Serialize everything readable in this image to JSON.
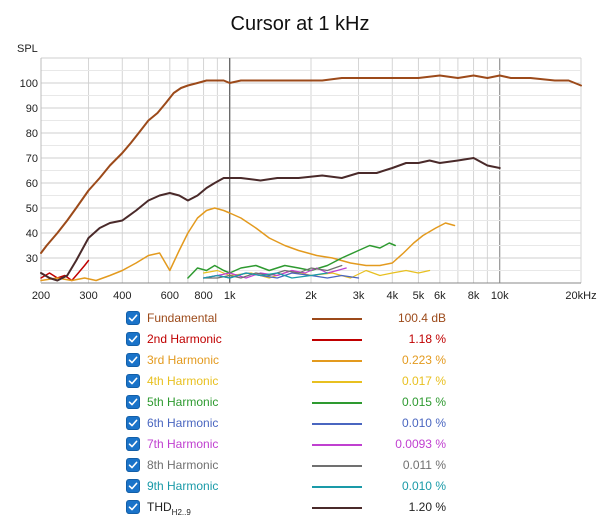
{
  "chart_data": {
    "type": "line",
    "title": "Cursor at 1 kHz",
    "ylabel": "SPL",
    "xlabel": "",
    "x_scale": "log",
    "xlim": [
      200,
      20000
    ],
    "ylim": [
      20,
      110
    ],
    "grid": true,
    "x_ticks": [
      {
        "v": 200,
        "label": "200"
      },
      {
        "v": 300,
        "label": "300"
      },
      {
        "v": 400,
        "label": "400"
      },
      {
        "v": 600,
        "label": "600"
      },
      {
        "v": 800,
        "label": "800"
      },
      {
        "v": 1000,
        "label": "1k"
      },
      {
        "v": 2000,
        "label": "2k"
      },
      {
        "v": 3000,
        "label": "3k"
      },
      {
        "v": 4000,
        "label": "4k"
      },
      {
        "v": 5000,
        "label": "5k"
      },
      {
        "v": 6000,
        "label": "6k"
      },
      {
        "v": 8000,
        "label": "8k"
      },
      {
        "v": 10000,
        "label": "10k"
      },
      {
        "v": 20000,
        "label": "20kHz"
      }
    ],
    "y_ticks": [
      30,
      40,
      50,
      60,
      70,
      80,
      90,
      100
    ],
    "cursor_x": 1000,
    "series": [
      {
        "name": "Fundamental",
        "color": "#9c4a1a",
        "width": 2,
        "x": [
          200,
          210,
          230,
          250,
          270,
          300,
          330,
          360,
          400,
          430,
          460,
          500,
          540,
          580,
          620,
          660,
          700,
          760,
          820,
          880,
          950,
          1000,
          1100,
          1300,
          1500,
          1800,
          2200,
          2600,
          3000,
          3500,
          4000,
          5000,
          6000,
          7000,
          8000,
          9000,
          10000,
          11000,
          13000,
          16000,
          18000,
          20000
        ],
        "y": [
          32,
          35,
          40,
          45,
          50,
          57,
          62,
          67,
          72,
          76,
          80,
          85,
          88,
          92,
          96,
          98,
          99,
          100,
          101,
          101,
          101,
          100,
          101,
          101,
          101,
          101,
          101,
          102,
          102,
          102,
          102,
          102,
          103,
          102,
          103,
          102,
          103,
          102,
          102,
          101,
          101,
          99
        ]
      },
      {
        "name": "2nd Harmonic",
        "color": "#c00000",
        "width": 1.5,
        "x": [
          200,
          215,
          230,
          245,
          260,
          275,
          290,
          300
        ],
        "y": [
          22,
          24,
          22,
          23,
          21,
          24,
          27,
          29
        ]
      },
      {
        "name": "3rd Harmonic",
        "color": "#e39a1e",
        "width": 1.5,
        "x": [
          200,
          230,
          260,
          290,
          320,
          360,
          400,
          450,
          500,
          550,
          600,
          650,
          700,
          760,
          820,
          880,
          950,
          1000,
          1100,
          1250,
          1400,
          1600,
          1800,
          2100,
          2400,
          2800,
          3200,
          3600,
          4000,
          4400,
          4800,
          5200,
          5800,
          6300,
          6800
        ],
        "y": [
          21,
          22,
          21,
          22,
          21,
          23,
          25,
          28,
          31,
          32,
          25,
          33,
          40,
          46,
          49,
          50,
          49,
          48,
          46,
          42,
          38,
          35,
          33,
          31,
          30,
          28,
          27,
          27,
          28,
          32,
          36,
          39,
          42,
          44,
          43
        ]
      },
      {
        "name": "4th Harmonic",
        "color": "#e8c020",
        "width": 1.2,
        "x": [
          800,
          900,
          1000,
          1200,
          1400,
          1700,
          2000,
          2400,
          2800,
          3200,
          3600,
          4000,
          4500,
          5000,
          5500
        ],
        "y": [
          24,
          25,
          23,
          24,
          22,
          25,
          23,
          24,
          22,
          25,
          23,
          24,
          25,
          24,
          25
        ]
      },
      {
        "name": "5th Harmonic",
        "color": "#2e9a30",
        "width": 1.5,
        "x": [
          700,
          760,
          820,
          880,
          950,
          1000,
          1100,
          1250,
          1400,
          1600,
          1800,
          2000,
          2300,
          2600,
          3000,
          3300,
          3600,
          3900,
          4100
        ],
        "y": [
          22,
          26,
          25,
          27,
          25,
          24,
          26,
          27,
          25,
          27,
          26,
          25,
          27,
          30,
          33,
          35,
          34,
          36,
          35
        ]
      },
      {
        "name": "6th Harmonic",
        "color": "#4a66c0",
        "width": 1.2,
        "x": [
          800,
          900,
          1000,
          1150,
          1300,
          1500,
          1700,
          2000,
          2300,
          2600,
          3000
        ],
        "y": [
          22,
          23,
          22,
          24,
          23,
          22,
          24,
          23,
          22,
          23,
          22
        ]
      },
      {
        "name": "7th Harmonic",
        "color": "#c040d0",
        "width": 1.2,
        "x": [
          800,
          900,
          1000,
          1150,
          1300,
          1500,
          1700,
          1900,
          2100,
          2300,
          2500,
          2700
        ],
        "y": [
          22,
          23,
          24,
          22,
          24,
          23,
          25,
          24,
          26,
          24,
          25,
          26
        ]
      },
      {
        "name": "8th Harmonic",
        "color": "#707070",
        "width": 1.2,
        "x": [
          800,
          900,
          1000,
          1100,
          1250,
          1400,
          1600,
          1800,
          2000,
          2300,
          2600
        ],
        "y": [
          22,
          22,
          23,
          22,
          24,
          23,
          25,
          24,
          26,
          25,
          27
        ]
      },
      {
        "name": "9th Harmonic",
        "color": "#1a9aa8",
        "width": 1.2,
        "x": [
          800,
          900,
          1000,
          1150,
          1300,
          1500,
          1700,
          2000,
          2300
        ],
        "y": [
          22,
          23,
          22,
          24,
          23,
          24,
          22,
          23,
          24
        ]
      },
      {
        "name": "THD",
        "color": "#4a2a2a",
        "width": 2,
        "x": [
          200,
          215,
          230,
          250,
          270,
          300,
          330,
          360,
          400,
          450,
          500,
          550,
          600,
          650,
          700,
          760,
          820,
          880,
          950,
          1000,
          1100,
          1300,
          1500,
          1800,
          2200,
          2600,
          3000,
          3500,
          4000,
          4500,
          5000,
          5500,
          6000,
          7000,
          8000,
          9000,
          10000
        ],
        "y": [
          24,
          22,
          21,
          23,
          29,
          38,
          42,
          44,
          45,
          49,
          53,
          55,
          56,
          55,
          53,
          55,
          58,
          60,
          62,
          62,
          62,
          61,
          62,
          62,
          63,
          62,
          64,
          64,
          66,
          68,
          68,
          69,
          68,
          69,
          70,
          67,
          66
        ]
      }
    ]
  },
  "legend": [
    {
      "name": "Fundamental",
      "color": "#9c4a1a",
      "text_color": "#9c4a1a",
      "value": "100.4 dB"
    },
    {
      "name": "2nd Harmonic",
      "color": "#c00000",
      "text_color": "#c00000",
      "value": "1.18 %"
    },
    {
      "name": "3rd Harmonic",
      "color": "#e39a1e",
      "text_color": "#e39a1e",
      "value": "0.223 %"
    },
    {
      "name": "4th Harmonic",
      "color": "#e8c020",
      "text_color": "#e8c020",
      "value": "0.017 %"
    },
    {
      "name": "5th Harmonic",
      "color": "#2e9a30",
      "text_color": "#2e9a30",
      "value": "0.015 %"
    },
    {
      "name": "6th Harmonic",
      "color": "#4a66c0",
      "text_color": "#4a66c0",
      "value": "0.010 %"
    },
    {
      "name": "7th Harmonic",
      "color": "#c040d0",
      "text_color": "#c040d0",
      "value": "0.0093 %"
    },
    {
      "name": "8th Harmonic",
      "color": "#707070",
      "text_color": "#707070",
      "value": "0.011 %"
    },
    {
      "name": "9th Harmonic",
      "color": "#1a9aa8",
      "text_color": "#1a9aa8",
      "value": "0.010 %"
    },
    {
      "name": "THD",
      "subscript": "H2..9",
      "color": "#4a2a2a",
      "text_color": "#222222",
      "value": "1.20 %"
    }
  ],
  "checkbox_icon": "checkmark-icon"
}
